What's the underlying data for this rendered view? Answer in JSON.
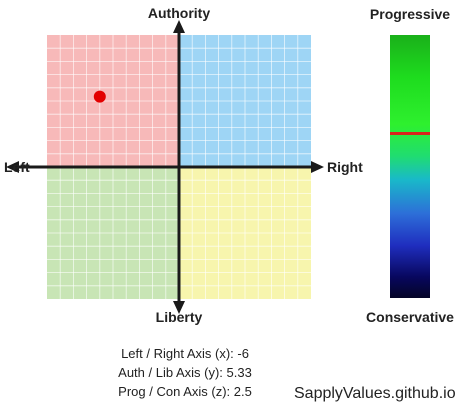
{
  "axes": {
    "top": "Authority",
    "bottom": "Liberty",
    "left": "Left",
    "right": "Right"
  },
  "z_scale": {
    "top": "Progressive",
    "bottom": "Conservative"
  },
  "readout": {
    "x_line": "Left / Right Axis (x): -6",
    "y_line": "Auth / Lib Axis (y): 5.33",
    "z_line": "Prog / Con Axis (z): 2.5"
  },
  "credit": "SapplyValues.github.io",
  "colors": {
    "quadrant_auth_left": "#f7b9b9",
    "quadrant_auth_right": "#9ed5f5",
    "quadrant_lib_left": "#c8e5b5",
    "quadrant_lib_right": "#f7f5ad",
    "grid_line": "#ffffff",
    "axis_line": "#1a1a1a",
    "marker": "#e30000",
    "z_marker": "#d8241c"
  },
  "chart_data": {
    "type": "scatter",
    "xlim": [
      -10,
      10
    ],
    "ylim": [
      -10,
      10
    ],
    "zlim": [
      -10,
      10
    ],
    "grid": true,
    "grid_divisions": 20,
    "point": {
      "x": -6,
      "y": 5.33,
      "z": 2.5
    }
  }
}
